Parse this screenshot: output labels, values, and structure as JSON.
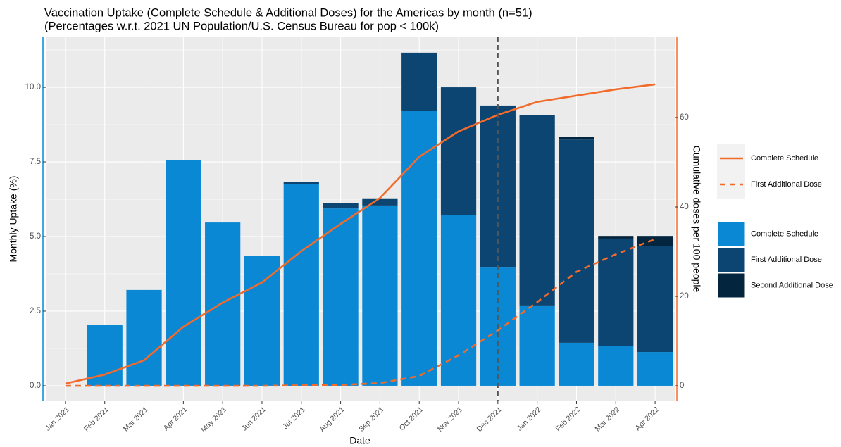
{
  "chart_data": {
    "type": "bar",
    "title": "Vaccination Uptake (Complete Schedule & Additional Doses) for the Americas by month (n=51)",
    "subtitle": "(Percentages w.r.t. 2021 UN Population/U.S. Census Bureau for pop < 100k)",
    "x_label": "Date",
    "y_label": "Monthly Uptake (%)",
    "y2_label": "Cumulative doses per 100 people",
    "categories": [
      "Jan 2021",
      "Feb 2021",
      "Mar 2021",
      "Apr 2021",
      "May 2021",
      "Jun 2021",
      "Jul 2021",
      "Aug 2021",
      "Sep 2021",
      "Oct 2021",
      "Nov 2021",
      "Dec 2021",
      "Jan 2022",
      "Feb 2022",
      "Mar 2022",
      "Apr 2022"
    ],
    "series": [
      {
        "name": "Complete Schedule",
        "kind": "bar",
        "color": "#0a88d4",
        "values": [
          0,
          2.03,
          3.21,
          7.55,
          5.47,
          4.36,
          6.75,
          5.94,
          6.04,
          9.2,
          5.73,
          3.96,
          2.69,
          1.44,
          1.34,
          1.13
        ]
      },
      {
        "name": "First Additional Dose",
        "kind": "bar",
        "color": "#0c4571",
        "values": [
          0,
          0,
          0,
          0,
          0,
          0,
          0.07,
          0.17,
          0.24,
          1.96,
          4.27,
          5.43,
          6.37,
          6.81,
          3.59,
          3.56
        ]
      },
      {
        "name": "Second Additional Dose",
        "kind": "bar",
        "color": "#03253d",
        "values": [
          0,
          0,
          0,
          0,
          0,
          0,
          0,
          0,
          0,
          0,
          0,
          0,
          0,
          0.1,
          0.09,
          0.33
        ]
      },
      {
        "name": "Complete Schedule",
        "kind": "line",
        "axis": "y2",
        "dashed": false,
        "color": "#f26b2b",
        "values": [
          0.5,
          2.5,
          5.7,
          13.2,
          18.6,
          23.1,
          30.1,
          36.2,
          42.0,
          51.2,
          56.9,
          60.6,
          63.5,
          64.9,
          66.3,
          67.4
        ]
      },
      {
        "name": "First Additional Dose",
        "kind": "line",
        "axis": "y2",
        "dashed": true,
        "color": "#f26b2b",
        "values": [
          0,
          0,
          0,
          0,
          0,
          0,
          0.1,
          0.2,
          0.6,
          2.2,
          6.8,
          12.4,
          18.7,
          25.5,
          29.4,
          32.8
        ]
      }
    ],
    "ylim": [
      -0.52,
      11.7
    ],
    "yticks": [
      {
        "value": 0,
        "label": "0.0"
      },
      2.5,
      {
        "value": 5,
        "label": "5.0"
      },
      7.5,
      {
        "value": 10,
        "label": "10.0"
      }
    ],
    "y2lim": [
      -3.46,
      78.1
    ],
    "y2ticks": [
      0,
      20,
      40,
      60
    ],
    "vline_at": "Dec 2021",
    "grid": true,
    "legend": "right"
  }
}
